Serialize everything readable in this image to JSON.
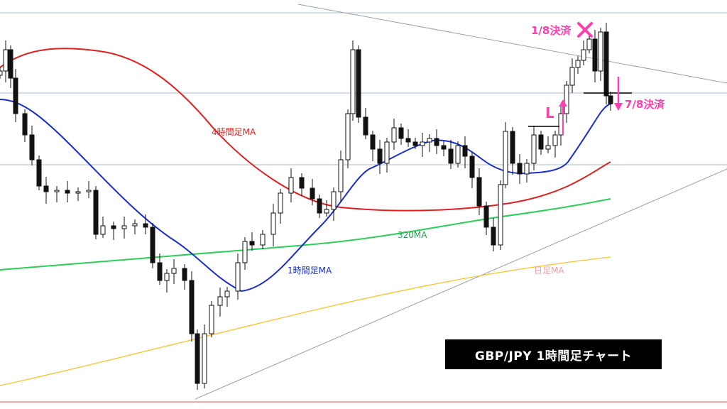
{
  "title": "GBP/JPY  1時間足チャート",
  "chart_data": {
    "type": "candlestick",
    "moving_averages": [
      {
        "name": "4時間足MA",
        "color": "#e02020"
      },
      {
        "name": "1時間足MA",
        "color": "#1a2ec8"
      },
      {
        "name": "320MA",
        "color": "#2ecc5a"
      },
      {
        "name": "日足MA",
        "color": "#f5c530"
      }
    ],
    "annotations": {
      "entry_label": "L",
      "exit1_label": "1/8決済",
      "exit2_label": "7/8決済"
    },
    "colors": {
      "bull_fill": "#ffffff",
      "bear_fill": "#111111",
      "accent": "#ff3fb0",
      "grid": "#aebdd0"
    },
    "grid": true,
    "horizontal_levels": 3,
    "trendlines": 2
  }
}
